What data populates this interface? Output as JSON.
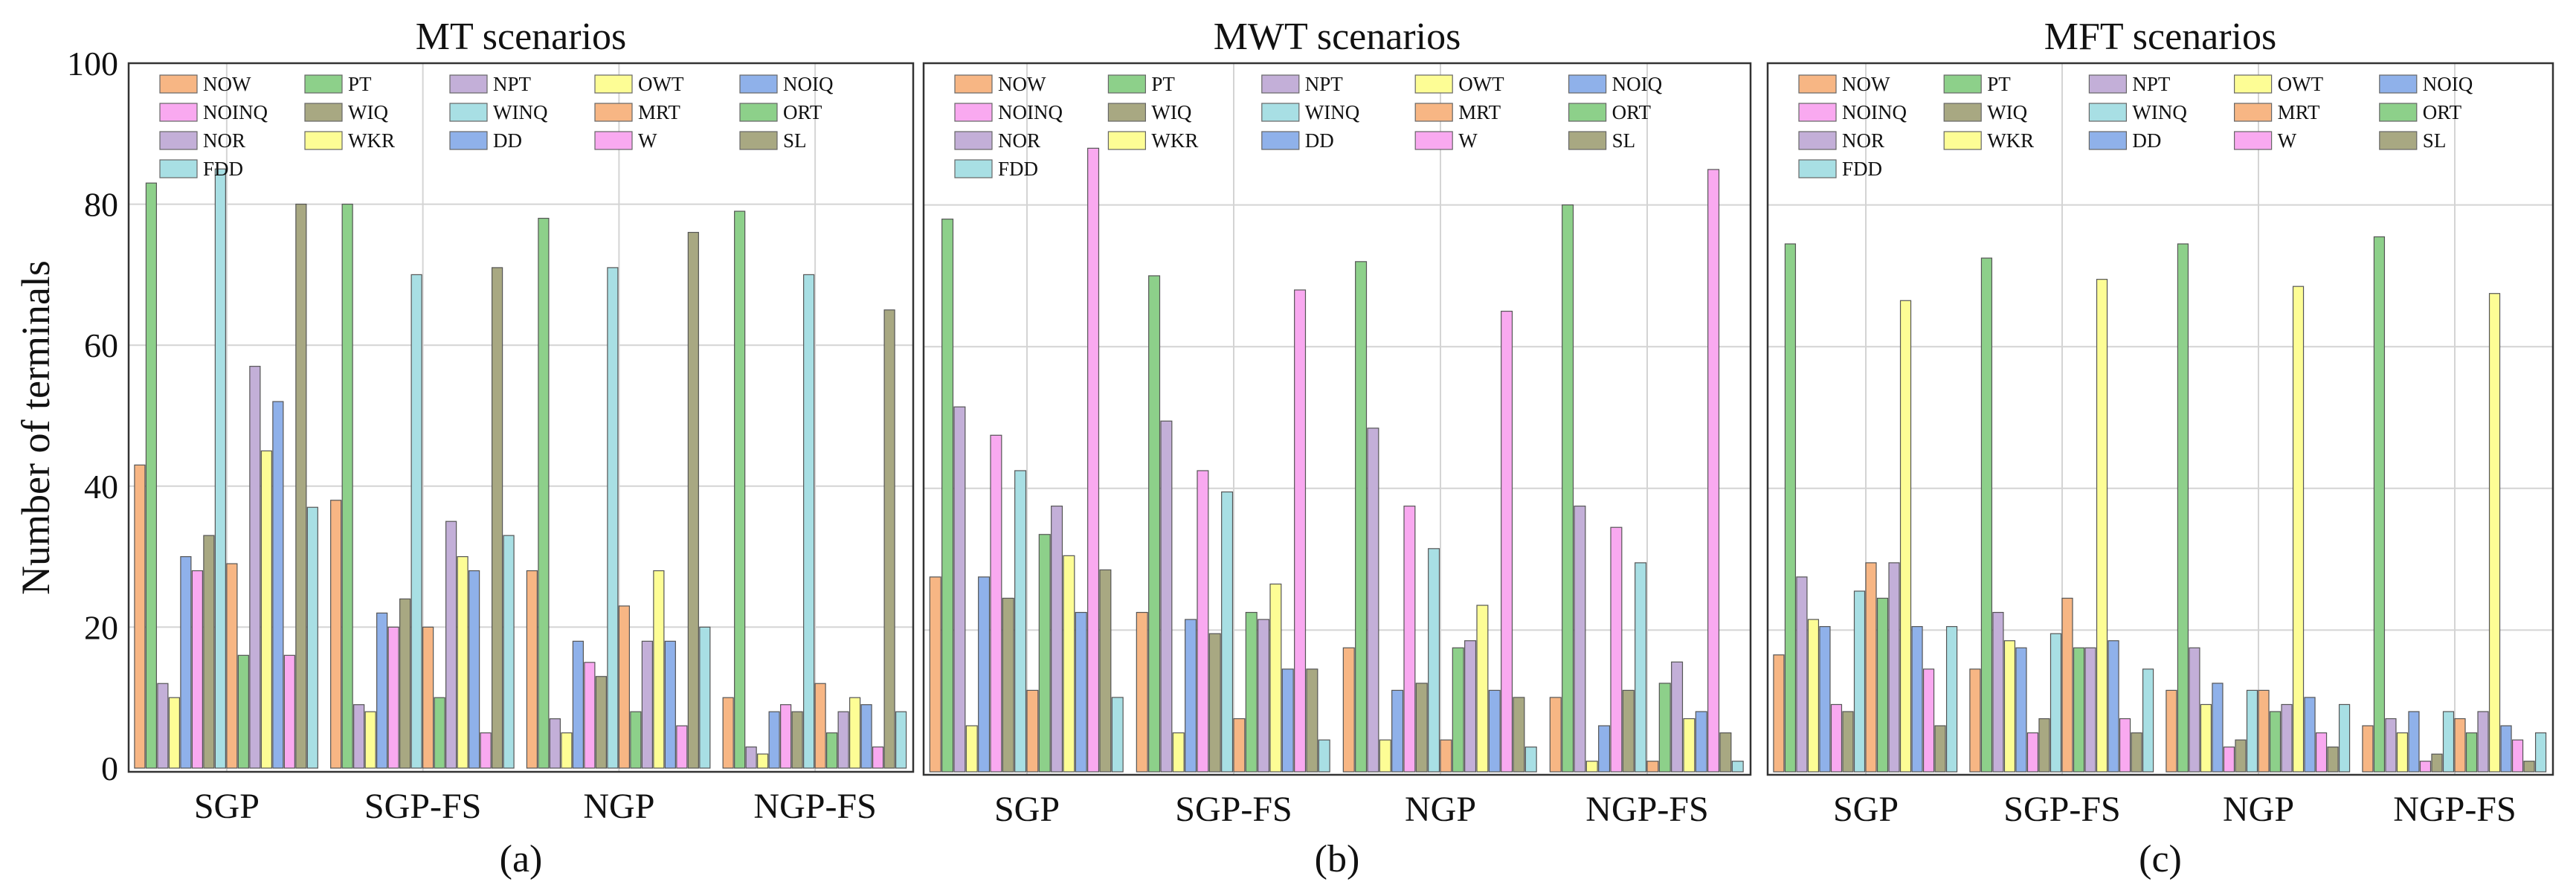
{
  "figure": {
    "ylabel": "Number of terminals",
    "panel_labels": [
      "(a)",
      "(b)",
      "(c)"
    ]
  },
  "chart_data": [
    {
      "type": "bar",
      "title": "MT scenarios",
      "panel_label": "(a)",
      "xlabel": "",
      "ylabel": "Number of terminals",
      "ylim": [
        0,
        100
      ],
      "yticks": [
        0,
        20,
        40,
        60,
        80,
        100
      ],
      "grid": true,
      "legend": "top",
      "categories": [
        "SGP",
        "SGP-FS",
        "NGP",
        "NGP-FS"
      ],
      "series": [
        {
          "name": "NOW",
          "color": "#f7b684",
          "values": [
            43,
            38,
            28,
            10
          ]
        },
        {
          "name": "PT",
          "color": "#8dd08a",
          "values": [
            83,
            80,
            78,
            79
          ]
        },
        {
          "name": "NPT",
          "color": "#c3afd8",
          "values": [
            12,
            9,
            7,
            3
          ]
        },
        {
          "name": "OWT",
          "color": "#fdfd95",
          "values": [
            10,
            8,
            5,
            2
          ]
        },
        {
          "name": "NOIQ",
          "color": "#8fb1ea",
          "values": [
            30,
            22,
            18,
            8
          ]
        },
        {
          "name": "NOINQ",
          "color": "#f9a9f0",
          "values": [
            28,
            20,
            15,
            9
          ]
        },
        {
          "name": "WIQ",
          "color": "#a8a882",
          "values": [
            33,
            24,
            13,
            8
          ]
        },
        {
          "name": "WINQ",
          "color": "#a8dfe4",
          "values": [
            85,
            70,
            71,
            70
          ]
        },
        {
          "name": "MRT",
          "color": "#f7b684",
          "values": [
            29,
            20,
            23,
            12
          ]
        },
        {
          "name": "ORT",
          "color": "#8dd08a",
          "values": [
            16,
            10,
            8,
            5
          ]
        },
        {
          "name": "NOR",
          "color": "#c3afd8",
          "values": [
            57,
            35,
            18,
            8
          ]
        },
        {
          "name": "WKR",
          "color": "#fdfd95",
          "values": [
            45,
            30,
            28,
            10
          ]
        },
        {
          "name": "DD",
          "color": "#8fb1ea",
          "values": [
            52,
            28,
            18,
            9
          ]
        },
        {
          "name": "W",
          "color": "#f9a9f0",
          "values": [
            16,
            5,
            6,
            3
          ]
        },
        {
          "name": "SL",
          "color": "#a8a882",
          "values": [
            80,
            71,
            76,
            65
          ]
        },
        {
          "name": "FDD",
          "color": "#a8dfe4",
          "values": [
            37,
            33,
            20,
            8
          ]
        }
      ]
    },
    {
      "type": "bar",
      "title": "MWT scenarios",
      "panel_label": "(b)",
      "xlabel": "",
      "ylabel": "",
      "ylim": [
        0,
        100
      ],
      "grid": true,
      "legend": "top",
      "categories": [
        "SGP",
        "SGP-FS",
        "NGP",
        "NGP-FS"
      ],
      "series": [
        {
          "name": "NOW",
          "color": "#f7b684",
          "values": [
            27.5,
            22.5,
            17.5,
            10.5
          ]
        },
        {
          "name": "PT",
          "color": "#8dd08a",
          "values": [
            78,
            70,
            72,
            80
          ]
        },
        {
          "name": "NPT",
          "color": "#c3afd8",
          "values": [
            51.5,
            49.5,
            48.5,
            37.5
          ]
        },
        {
          "name": "OWT",
          "color": "#fdfd95",
          "values": [
            6.5,
            5.5,
            4.5,
            1.5
          ]
        },
        {
          "name": "NOIQ",
          "color": "#8fb1ea",
          "values": [
            27.5,
            21.5,
            11.5,
            6.5
          ]
        },
        {
          "name": "NOINQ",
          "color": "#f9a9f0",
          "values": [
            47.5,
            42.5,
            37.5,
            34.5
          ]
        },
        {
          "name": "WIQ",
          "color": "#a8a882",
          "values": [
            24.5,
            19.5,
            12.5,
            11.5
          ]
        },
        {
          "name": "WINQ",
          "color": "#a8dfe4",
          "values": [
            42.5,
            39.5,
            31.5,
            29.5
          ]
        },
        {
          "name": "MRT",
          "color": "#f7b684",
          "values": [
            11.5,
            7.5,
            4.5,
            1.5
          ]
        },
        {
          "name": "ORT",
          "color": "#8dd08a",
          "values": [
            33.5,
            22.5,
            17.5,
            12.5
          ]
        },
        {
          "name": "NOR",
          "color": "#c3afd8",
          "values": [
            37.5,
            21.5,
            18.5,
            15.5
          ]
        },
        {
          "name": "WKR",
          "color": "#fdfd95",
          "values": [
            30.5,
            26.5,
            23.5,
            7.5
          ]
        },
        {
          "name": "DD",
          "color": "#8fb1ea",
          "values": [
            22.5,
            14.5,
            11.5,
            8.5
          ]
        },
        {
          "name": "W",
          "color": "#f9a9f0",
          "values": [
            88,
            68,
            65,
            85
          ]
        },
        {
          "name": "SL",
          "color": "#a8a882",
          "values": [
            28.5,
            14.5,
            10.5,
            5.5
          ]
        },
        {
          "name": "FDD",
          "color": "#a8dfe4",
          "values": [
            10.5,
            4.5,
            3.5,
            1.5
          ]
        }
      ]
    },
    {
      "type": "bar",
      "title": "MFT scenarios",
      "panel_label": "(c)",
      "xlabel": "",
      "ylabel": "",
      "ylim": [
        0,
        100
      ],
      "grid": true,
      "legend": "top",
      "categories": [
        "SGP",
        "SGP-FS",
        "NGP",
        "NGP-FS"
      ],
      "series": [
        {
          "name": "NOW",
          "color": "#f7b684",
          "values": [
            16.5,
            14.5,
            11.5,
            6.5
          ]
        },
        {
          "name": "PT",
          "color": "#8dd08a",
          "values": [
            74.5,
            72.5,
            74.5,
            75.5
          ]
        },
        {
          "name": "NPT",
          "color": "#c3afd8",
          "values": [
            27.5,
            22.5,
            17.5,
            7.5
          ]
        },
        {
          "name": "OWT",
          "color": "#fdfd95",
          "values": [
            21.5,
            18.5,
            9.5,
            5.5
          ]
        },
        {
          "name": "NOIQ",
          "color": "#8fb1ea",
          "values": [
            20.5,
            17.5,
            12.5,
            8.5
          ]
        },
        {
          "name": "NOINQ",
          "color": "#f9a9f0",
          "values": [
            9.5,
            5.5,
            3.5,
            1.5
          ]
        },
        {
          "name": "WIQ",
          "color": "#a8a882",
          "values": [
            8.5,
            7.5,
            4.5,
            2.5
          ]
        },
        {
          "name": "WINQ",
          "color": "#a8dfe4",
          "values": [
            25.5,
            19.5,
            11.5,
            8.5
          ]
        },
        {
          "name": "MRT",
          "color": "#f7b684",
          "values": [
            29.5,
            24.5,
            11.5,
            7.5
          ]
        },
        {
          "name": "ORT",
          "color": "#8dd08a",
          "values": [
            24.5,
            17.5,
            8.5,
            5.5
          ]
        },
        {
          "name": "NOR",
          "color": "#c3afd8",
          "values": [
            29.5,
            17.5,
            9.5,
            8.5
          ]
        },
        {
          "name": "WKR",
          "color": "#fdfd95",
          "values": [
            66.5,
            69.5,
            68.5,
            67.5
          ]
        },
        {
          "name": "DD",
          "color": "#8fb1ea",
          "values": [
            20.5,
            18.5,
            10.5,
            6.5
          ]
        },
        {
          "name": "W",
          "color": "#f9a9f0",
          "values": [
            14.5,
            7.5,
            5.5,
            4.5
          ]
        },
        {
          "name": "SL",
          "color": "#a8a882",
          "values": [
            6.5,
            5.5,
            3.5,
            1.5
          ]
        },
        {
          "name": "FDD",
          "color": "#a8dfe4",
          "values": [
            20.5,
            14.5,
            9.5,
            5.5
          ]
        }
      ]
    }
  ]
}
